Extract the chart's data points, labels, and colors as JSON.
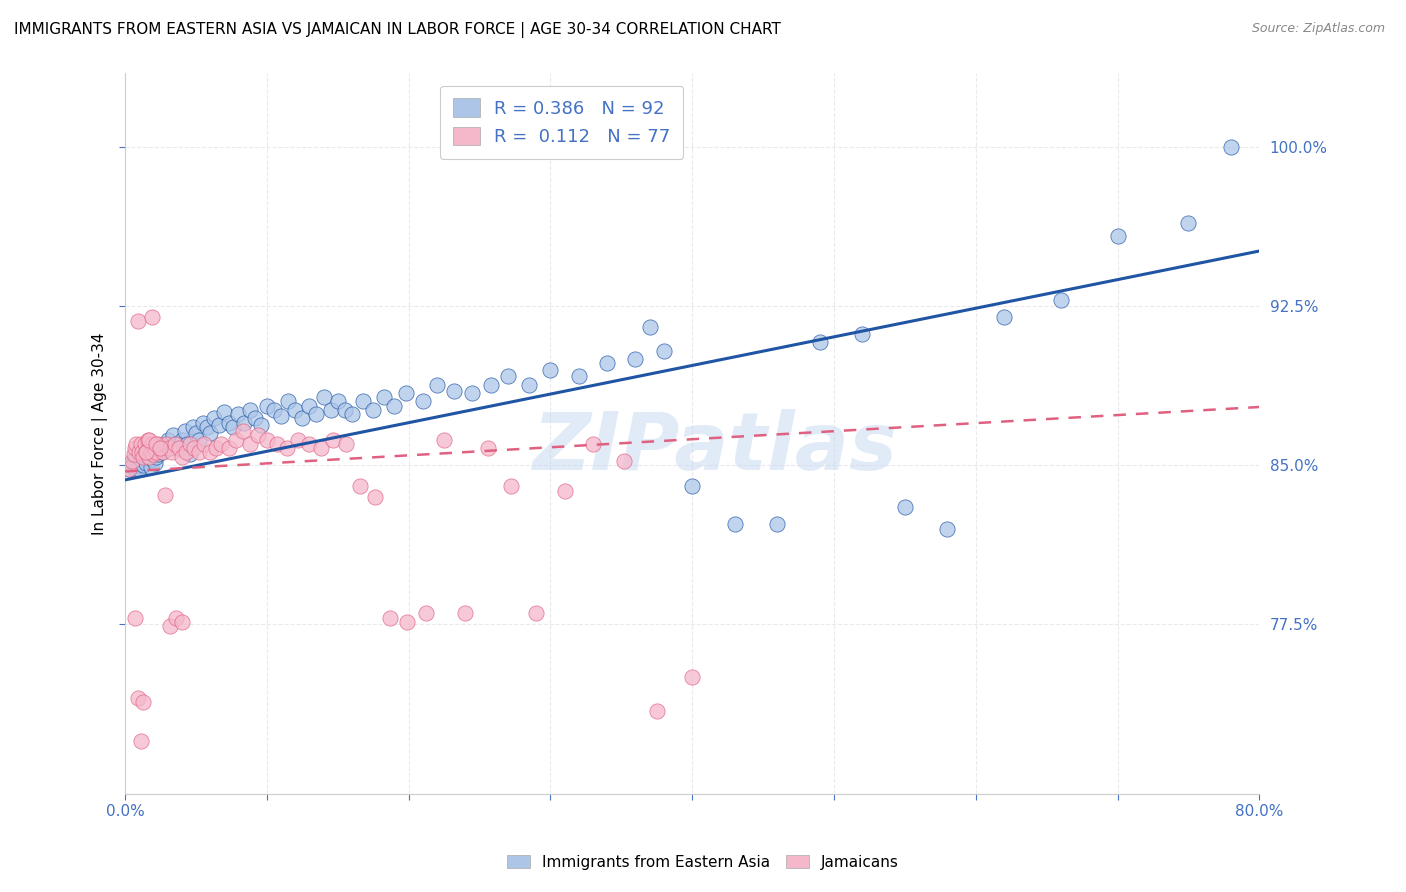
{
  "title": "IMMIGRANTS FROM EASTERN ASIA VS JAMAICAN IN LABOR FORCE | AGE 30-34 CORRELATION CHART",
  "source": "Source: ZipAtlas.com",
  "ylabel": "In Labor Force | Age 30-34",
  "xlim": [
    0.0,
    0.8
  ],
  "ylim": [
    0.695,
    1.035
  ],
  "xticks": [
    0.0,
    0.1,
    0.2,
    0.3,
    0.4,
    0.5,
    0.6,
    0.7,
    0.8
  ],
  "yticks": [
    0.775,
    0.85,
    0.925,
    1.0
  ],
  "yticklabels": [
    "77.5%",
    "85.0%",
    "92.5%",
    "100.0%"
  ],
  "blue_R": 0.386,
  "blue_N": 92,
  "pink_R": 0.112,
  "pink_N": 77,
  "blue_color": "#adc6e8",
  "pink_color": "#f5b8cb",
  "blue_line_color": "#2055a4",
  "pink_line_color": "#e06080",
  "background_color": "#ffffff",
  "grid_color": "#e0e0e8",
  "watermark": "ZIPatlas",
  "title_fontsize": 11,
  "axis_label_color": "#4472c4",
  "blue_x": [
    0.003,
    0.005,
    0.006,
    0.007,
    0.008,
    0.009,
    0.01,
    0.01,
    0.011,
    0.012,
    0.013,
    0.014,
    0.015,
    0.016,
    0.017,
    0.018,
    0.019,
    0.02,
    0.021,
    0.022,
    0.023,
    0.025,
    0.026,
    0.028,
    0.03,
    0.032,
    0.034,
    0.036,
    0.038,
    0.04,
    0.042,
    0.044,
    0.046,
    0.048,
    0.05,
    0.052,
    0.055,
    0.058,
    0.06,
    0.063,
    0.066,
    0.07,
    0.073,
    0.076,
    0.08,
    0.084,
    0.088,
    0.092,
    0.096,
    0.1,
    0.105,
    0.11,
    0.115,
    0.12,
    0.125,
    0.13,
    0.135,
    0.14,
    0.145,
    0.15,
    0.155,
    0.16,
    0.168,
    0.175,
    0.183,
    0.19,
    0.198,
    0.21,
    0.22,
    0.232,
    0.245,
    0.258,
    0.27,
    0.285,
    0.3,
    0.32,
    0.34,
    0.36,
    0.38,
    0.4,
    0.43,
    0.46,
    0.49,
    0.52,
    0.55,
    0.58,
    0.62,
    0.66,
    0.7,
    0.75,
    0.37,
    0.78
  ],
  "blue_y": [
    0.848,
    0.85,
    0.852,
    0.848,
    0.853,
    0.85,
    0.848,
    0.855,
    0.851,
    0.854,
    0.85,
    0.856,
    0.851,
    0.854,
    0.856,
    0.849,
    0.853,
    0.857,
    0.851,
    0.854,
    0.855,
    0.859,
    0.856,
    0.86,
    0.862,
    0.858,
    0.864,
    0.86,
    0.858,
    0.862,
    0.866,
    0.86,
    0.855,
    0.868,
    0.865,
    0.862,
    0.87,
    0.868,
    0.865,
    0.872,
    0.869,
    0.875,
    0.87,
    0.868,
    0.874,
    0.87,
    0.876,
    0.872,
    0.869,
    0.878,
    0.876,
    0.873,
    0.88,
    0.876,
    0.872,
    0.878,
    0.874,
    0.882,
    0.876,
    0.88,
    0.876,
    0.874,
    0.88,
    0.876,
    0.882,
    0.878,
    0.884,
    0.88,
    0.888,
    0.885,
    0.884,
    0.888,
    0.892,
    0.888,
    0.895,
    0.892,
    0.898,
    0.9,
    0.904,
    0.84,
    0.822,
    0.822,
    0.908,
    0.912,
    0.83,
    0.82,
    0.92,
    0.928,
    0.958,
    0.964,
    0.915,
    1.0
  ],
  "pink_x": [
    0.003,
    0.005,
    0.006,
    0.007,
    0.008,
    0.009,
    0.01,
    0.011,
    0.012,
    0.013,
    0.014,
    0.015,
    0.016,
    0.017,
    0.018,
    0.019,
    0.02,
    0.021,
    0.022,
    0.023,
    0.025,
    0.027,
    0.029,
    0.031,
    0.033,
    0.035,
    0.038,
    0.04,
    0.043,
    0.046,
    0.049,
    0.052,
    0.056,
    0.06,
    0.064,
    0.068,
    0.073,
    0.078,
    0.083,
    0.088,
    0.094,
    0.1,
    0.107,
    0.114,
    0.122,
    0.13,
    0.138,
    0.147,
    0.156,
    0.166,
    0.176,
    0.187,
    0.199,
    0.212,
    0.225,
    0.24,
    0.256,
    0.272,
    0.29,
    0.31,
    0.33,
    0.352,
    0.375,
    0.4,
    0.007,
    0.009,
    0.011,
    0.013,
    0.015,
    0.017,
    0.019,
    0.022,
    0.025,
    0.028,
    0.032,
    0.036,
    0.04
  ],
  "pink_y": [
    0.848,
    0.852,
    0.855,
    0.858,
    0.86,
    0.918,
    0.856,
    0.86,
    0.856,
    0.854,
    0.86,
    0.856,
    0.862,
    0.854,
    0.856,
    0.86,
    0.855,
    0.858,
    0.856,
    0.86,
    0.858,
    0.856,
    0.86,
    0.858,
    0.856,
    0.86,
    0.858,
    0.854,
    0.856,
    0.86,
    0.858,
    0.856,
    0.86,
    0.856,
    0.858,
    0.86,
    0.858,
    0.862,
    0.866,
    0.86,
    0.864,
    0.862,
    0.86,
    0.858,
    0.862,
    0.86,
    0.858,
    0.862,
    0.86,
    0.84,
    0.835,
    0.778,
    0.776,
    0.78,
    0.862,
    0.78,
    0.858,
    0.84,
    0.78,
    0.838,
    0.86,
    0.852,
    0.734,
    0.75,
    0.778,
    0.74,
    0.72,
    0.738,
    0.856,
    0.862,
    0.92,
    0.86,
    0.858,
    0.836,
    0.774,
    0.778,
    0.776
  ]
}
